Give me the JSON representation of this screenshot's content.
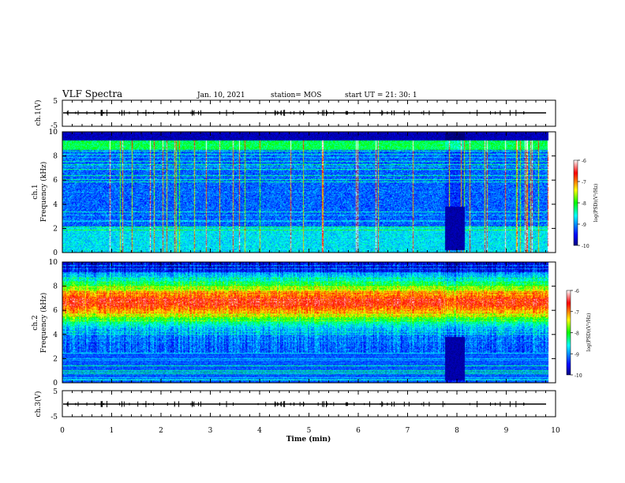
{
  "header": {
    "title": "VLF Spectra",
    "date": "Jan. 10, 2021",
    "station": "station= MOS",
    "start": "start  UT  =   21: 30: 1"
  },
  "chart_data": [
    {
      "type": "line",
      "name": "ch1-waveform",
      "ylabel": "ch.1(V)",
      "ylim": [
        -5,
        5
      ],
      "yticks": [
        "5",
        "-5"
      ],
      "xlim": [
        0,
        10
      ],
      "baseline": 0
    },
    {
      "type": "heatmap",
      "name": "ch1-spectrogram",
      "ylabel": "ch.1\nFrequency (kHz)",
      "ylabel_lines": [
        "ch.1",
        "Frequency (kHz)"
      ],
      "ylim": [
        0,
        10
      ],
      "yticks": [
        "0",
        "2",
        "4",
        "6",
        "8",
        "10"
      ],
      "xlim": [
        0,
        10
      ],
      "colorbar": {
        "label": "log(PSD)(V²/Hz)",
        "range": [
          -10,
          -6
        ],
        "ticks": [
          "-6",
          "-7",
          "-8",
          "-9",
          "-10"
        ]
      },
      "gap_min": [
        7.75,
        8.15
      ],
      "data_end_min": 9.85
    },
    {
      "type": "heatmap",
      "name": "ch2-spectrogram",
      "ylabel": "ch.2\nFrequency (kHz)",
      "ylabel_lines": [
        "ch.2",
        "Frequency (kHz)"
      ],
      "ylim": [
        0,
        10
      ],
      "yticks": [
        "0",
        "2",
        "4",
        "6",
        "8",
        "10"
      ],
      "xlim": [
        0,
        10
      ],
      "colorbar": {
        "label": "log(PSD)(V²/Hz)",
        "range": [
          -10,
          -6
        ],
        "ticks": [
          "-6",
          "-7",
          "-8",
          "-9",
          "-10"
        ]
      },
      "gap_min": [
        7.75,
        8.15
      ],
      "data_end_min": 9.85
    },
    {
      "type": "line",
      "name": "ch3-waveform",
      "ylabel": "ch.3(V)",
      "ylim": [
        -5,
        5
      ],
      "yticks": [
        "5",
        "-5"
      ],
      "xlim": [
        0,
        10
      ],
      "baseline": 0
    }
  ],
  "xaxis": {
    "label": "Time (min)",
    "ticks": [
      "0",
      "1",
      "2",
      "3",
      "4",
      "5",
      "6",
      "7",
      "8",
      "9",
      "10"
    ]
  }
}
